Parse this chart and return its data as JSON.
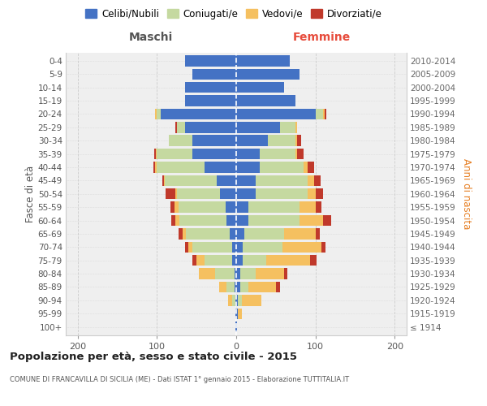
{
  "age_groups": [
    "100+",
    "95-99",
    "90-94",
    "85-89",
    "80-84",
    "75-79",
    "70-74",
    "65-69",
    "60-64",
    "55-59",
    "50-54",
    "45-49",
    "40-44",
    "35-39",
    "30-34",
    "25-29",
    "20-24",
    "15-19",
    "10-14",
    "5-9",
    "0-4"
  ],
  "birth_years": [
    "≤ 1914",
    "1915-1919",
    "1920-1924",
    "1925-1929",
    "1930-1934",
    "1935-1939",
    "1940-1944",
    "1945-1949",
    "1950-1954",
    "1955-1959",
    "1960-1964",
    "1965-1969",
    "1970-1974",
    "1975-1979",
    "1980-1984",
    "1985-1989",
    "1990-1994",
    "1995-1999",
    "2000-2004",
    "2005-2009",
    "2010-2014"
  ],
  "maschi": {
    "celibi": [
      1,
      1,
      1,
      2,
      2,
      5,
      5,
      8,
      12,
      13,
      20,
      25,
      40,
      55,
      55,
      65,
      95,
      65,
      65,
      55,
      65
    ],
    "coniugati": [
      0,
      0,
      4,
      10,
      25,
      35,
      50,
      55,
      60,
      60,
      55,
      65,
      60,
      45,
      30,
      10,
      5,
      0,
      0,
      0,
      0
    ],
    "vedovi": [
      0,
      0,
      5,
      10,
      20,
      10,
      5,
      5,
      5,
      5,
      2,
      1,
      2,
      1,
      0,
      0,
      2,
      0,
      0,
      0,
      0
    ],
    "divorziati": [
      0,
      0,
      0,
      0,
      0,
      5,
      5,
      5,
      5,
      5,
      12,
      2,
      2,
      2,
      0,
      2,
      0,
      0,
      0,
      0,
      0
    ]
  },
  "femmine": {
    "nubili": [
      1,
      2,
      2,
      5,
      5,
      8,
      8,
      10,
      15,
      15,
      25,
      25,
      30,
      30,
      40,
      55,
      100,
      75,
      60,
      80,
      68
    ],
    "coniugate": [
      0,
      0,
      5,
      10,
      20,
      30,
      50,
      50,
      65,
      65,
      65,
      65,
      55,
      45,
      35,
      20,
      10,
      0,
      0,
      0,
      0
    ],
    "vedove": [
      0,
      5,
      25,
      35,
      35,
      55,
      50,
      40,
      30,
      20,
      10,
      8,
      5,
      2,
      2,
      2,
      2,
      0,
      0,
      0,
      0
    ],
    "divorziate": [
      0,
      0,
      0,
      5,
      5,
      8,
      5,
      5,
      10,
      8,
      10,
      8,
      8,
      8,
      5,
      0,
      2,
      0,
      0,
      0,
      0
    ]
  },
  "colors": {
    "celibi": "#4472c4",
    "coniugati": "#c5d9a0",
    "vedovi": "#f5c060",
    "divorziati": "#c0392b"
  },
  "xlim": [
    -215,
    215
  ],
  "xticks": [
    -200,
    -100,
    0,
    100,
    200
  ],
  "xticklabels": [
    "200",
    "100",
    "0",
    "100",
    "200"
  ],
  "title": "Popolazione per età, sesso e stato civile - 2015",
  "subtitle": "COMUNE DI FRANCAVILLA DI SICILIA (ME) - Dati ISTAT 1° gennaio 2015 - Elaborazione TUTTITALIA.IT",
  "ylabel_left": "Fasce di età",
  "ylabel_right": "Anni di nascita",
  "header_maschi": "Maschi",
  "header_femmine": "Femmine",
  "legend_labels": [
    "Celibi/Nubili",
    "Coniugati/e",
    "Vedovi/e",
    "Divorziati/e"
  ],
  "bg_color": "#ffffff",
  "plot_bg": "#efefef",
  "grid_color": "#cccccc"
}
